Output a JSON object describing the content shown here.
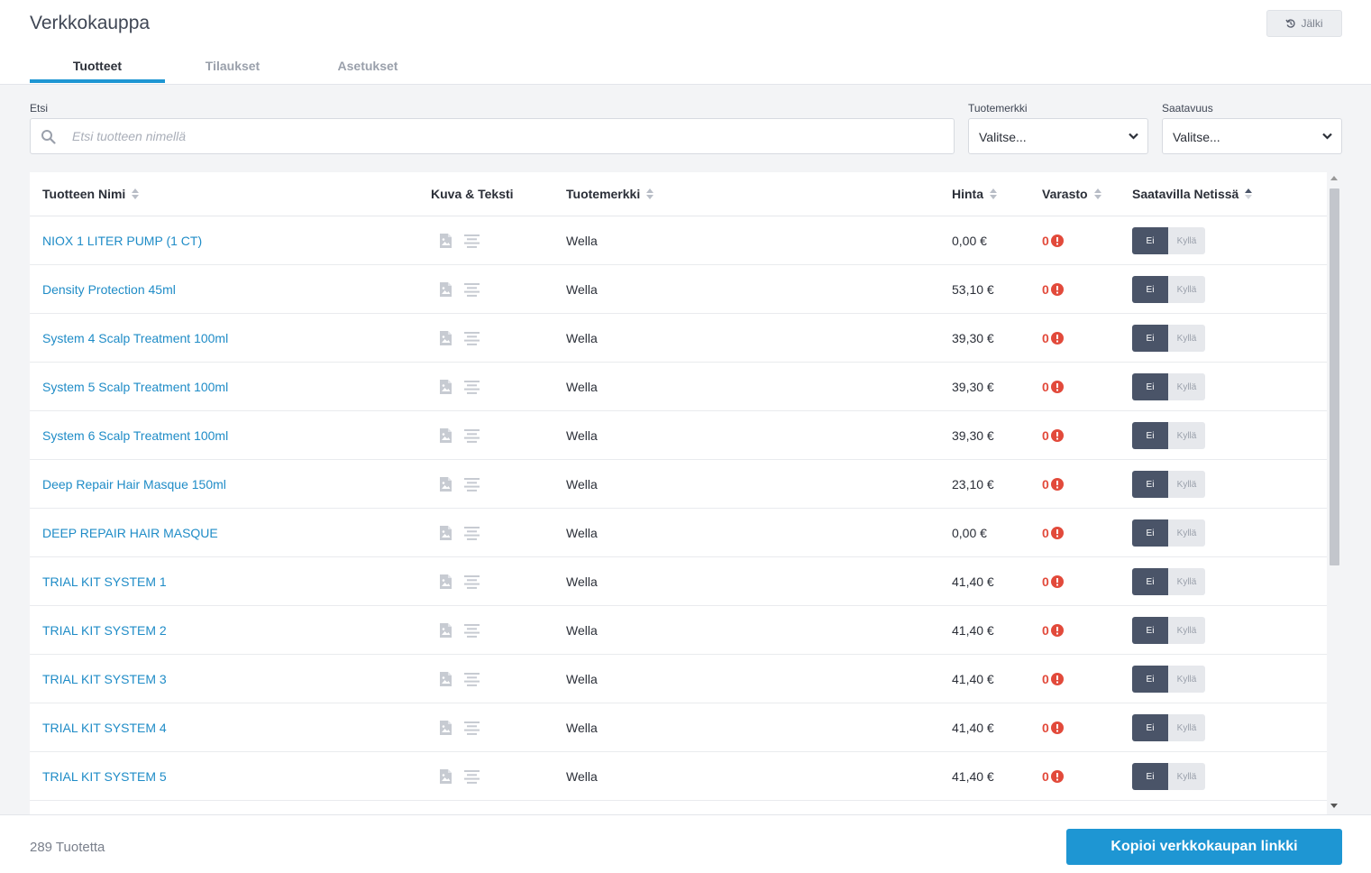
{
  "app": {
    "title": "Verkkokauppa",
    "history_label": "Jälki"
  },
  "tabs": [
    {
      "label": "Tuotteet"
    },
    {
      "label": "Tilaukset"
    },
    {
      "label": "Asetukset"
    }
  ],
  "filters": {
    "search_label": "Etsi",
    "search_placeholder": "Etsi tuotteen nimellä",
    "search_value": "",
    "brand_label": "Tuotemerkki",
    "brand_value": "Valitse...",
    "availability_label": "Saatavuus",
    "availability_value": "Valitse..."
  },
  "table": {
    "columns": [
      "Tuotteen Nimi",
      "Kuva & Teksti",
      "Tuotemerkki",
      "Hinta",
      "Varasto",
      "Saatavilla Netissä"
    ],
    "rows": [
      {
        "name": "NIOX 1 LITER PUMP (1 CT)",
        "brand": "Wella",
        "price": "0,00 €",
        "stock": "0",
        "off": "Ei",
        "on": "Kyllä"
      },
      {
        "name": "Density Protection 45ml",
        "brand": "Wella",
        "price": "53,10 €",
        "stock": "0",
        "off": "Ei",
        "on": "Kyllä"
      },
      {
        "name": "System 4 Scalp Treatment 100ml",
        "brand": "Wella",
        "price": "39,30 €",
        "stock": "0",
        "off": "Ei",
        "on": "Kyllä"
      },
      {
        "name": "System 5 Scalp Treatment 100ml",
        "brand": "Wella",
        "price": "39,30 €",
        "stock": "0",
        "off": "Ei",
        "on": "Kyllä"
      },
      {
        "name": "System 6 Scalp Treatment 100ml",
        "brand": "Wella",
        "price": "39,30 €",
        "stock": "0",
        "off": "Ei",
        "on": "Kyllä"
      },
      {
        "name": "Deep Repair Hair Masque 150ml",
        "brand": "Wella",
        "price": "23,10 €",
        "stock": "0",
        "off": "Ei",
        "on": "Kyllä"
      },
      {
        "name": "DEEP REPAIR HAIR MASQUE",
        "brand": "Wella",
        "price": "0,00 €",
        "stock": "0",
        "off": "Ei",
        "on": "Kyllä"
      },
      {
        "name": "TRIAL KIT SYSTEM 1",
        "brand": "Wella",
        "price": "41,40 €",
        "stock": "0",
        "off": "Ei",
        "on": "Kyllä"
      },
      {
        "name": "TRIAL KIT SYSTEM 2",
        "brand": "Wella",
        "price": "41,40 €",
        "stock": "0",
        "off": "Ei",
        "on": "Kyllä"
      },
      {
        "name": "TRIAL KIT SYSTEM 3",
        "brand": "Wella",
        "price": "41,40 €",
        "stock": "0",
        "off": "Ei",
        "on": "Kyllä"
      },
      {
        "name": "TRIAL KIT SYSTEM 4",
        "brand": "Wella",
        "price": "41,40 €",
        "stock": "0",
        "off": "Ei",
        "on": "Kyllä"
      },
      {
        "name": "TRIAL KIT SYSTEM 5",
        "brand": "Wella",
        "price": "41,40 €",
        "stock": "0",
        "off": "Ei",
        "on": "Kyllä"
      }
    ]
  },
  "footer": {
    "count_label": "289 Tuotetta",
    "copy_button": "Kopioi verkkokaupan linkki"
  },
  "colors": {
    "accent": "#1e96d3",
    "link": "#1f8cc7",
    "danger": "#e24a3b",
    "toggle_off": "#4a5468"
  }
}
